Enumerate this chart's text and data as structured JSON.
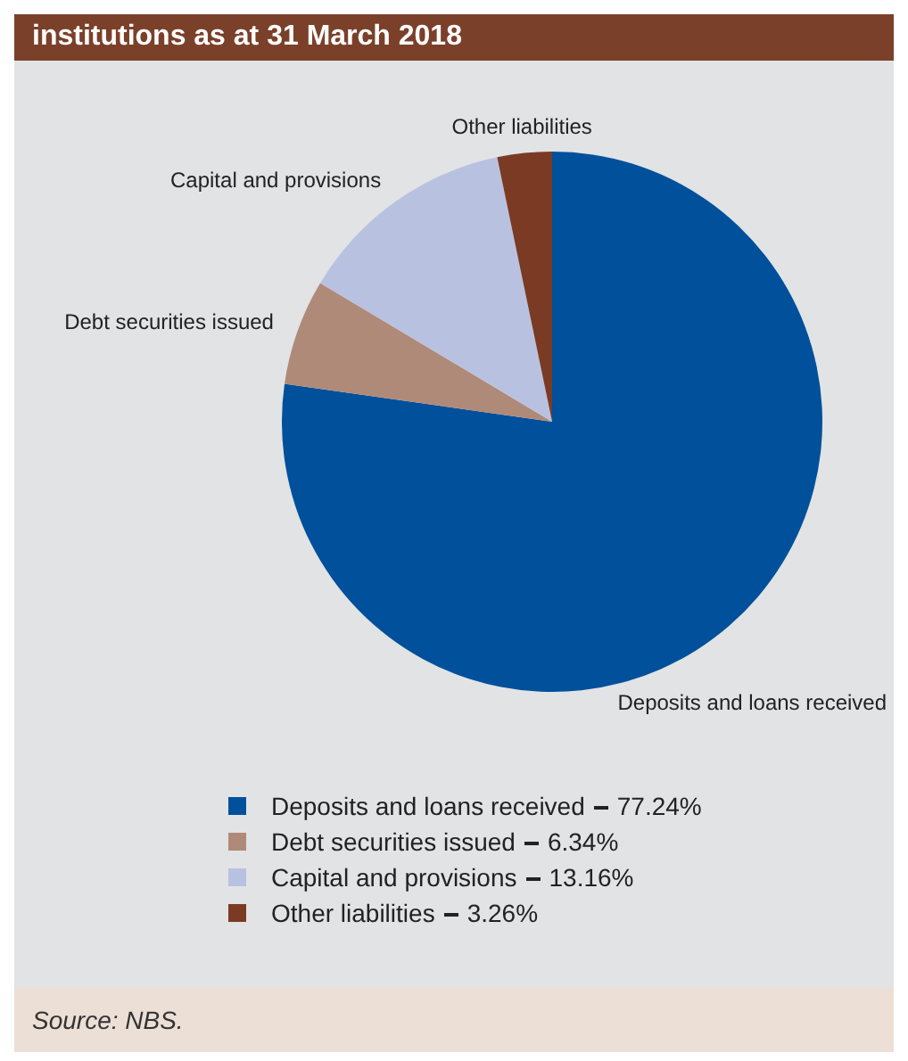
{
  "chart_data": {
    "type": "pie",
    "title": "institutions as at 31 March 2018",
    "categories": [
      "Deposits and loans received",
      "Debt securities issued",
      "Capital and provisions",
      "Other liabilities"
    ],
    "values": [
      77.24,
      6.34,
      13.16,
      3.26
    ],
    "value_labels": [
      "77.24%",
      "6.34%",
      "13.16%",
      "3.26%"
    ],
    "colors": [
      "#00509b",
      "#b08a78",
      "#b8c2e0",
      "#7b3a24"
    ],
    "legend": "bottom",
    "annotations": [
      "Source: NBS."
    ]
  }
}
